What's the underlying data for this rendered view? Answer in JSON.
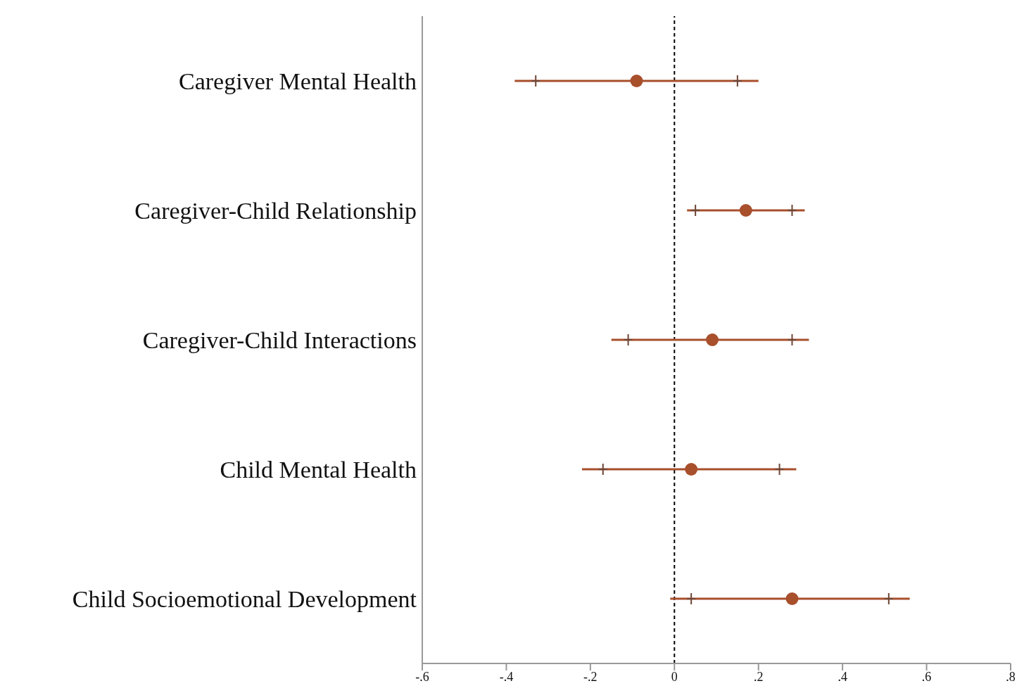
{
  "chart_data": {
    "type": "scatter",
    "orientation": "horizontal",
    "categories": [
      "Caregiver Mental Health",
      "Caregiver-Child Relationship",
      "Caregiver-Child Interactions",
      "Child Mental Health",
      "Child Socioemotional Development"
    ],
    "series": [
      {
        "color": "#a84f2c",
        "marker": "circle",
        "values": [
          -0.09,
          0.17,
          0.09,
          0.04,
          0.28
        ],
        "errors": [
          [
            -0.38,
            0.2
          ],
          [
            0.03,
            0.31
          ],
          [
            -0.15,
            0.32
          ],
          [
            -0.22,
            0.29
          ],
          [
            -0.01,
            0.56
          ]
        ]
      },
      {
        "color": "#6e4535",
        "marker": "cross",
        "values": [
          -0.33,
          0.05,
          -0.11,
          -0.17,
          0.04
        ]
      },
      {
        "color": "#6e4535",
        "marker": "cross",
        "values": [
          0.15,
          0.28,
          0.28,
          0.25,
          0.51
        ]
      }
    ],
    "xlim": [
      -0.6,
      0.8
    ],
    "xticks": [
      {
        "value": -0.6,
        "label": "-.6"
      },
      {
        "value": -0.4,
        "label": "-.4"
      },
      {
        "value": -0.2,
        "label": "-.2"
      },
      0,
      {
        "value": 0.2,
        "label": ".2"
      },
      {
        "value": 0.4,
        "label": ".4"
      },
      {
        "value": 0.6,
        "label": ".6"
      },
      {
        "value": 0.8,
        "label": ".8"
      }
    ],
    "ref_lines": [
      {
        "axis": "x",
        "value": 0,
        "color": "#000000",
        "line_style": "dashed"
      }
    ],
    "grid": false,
    "legend": false
  }
}
